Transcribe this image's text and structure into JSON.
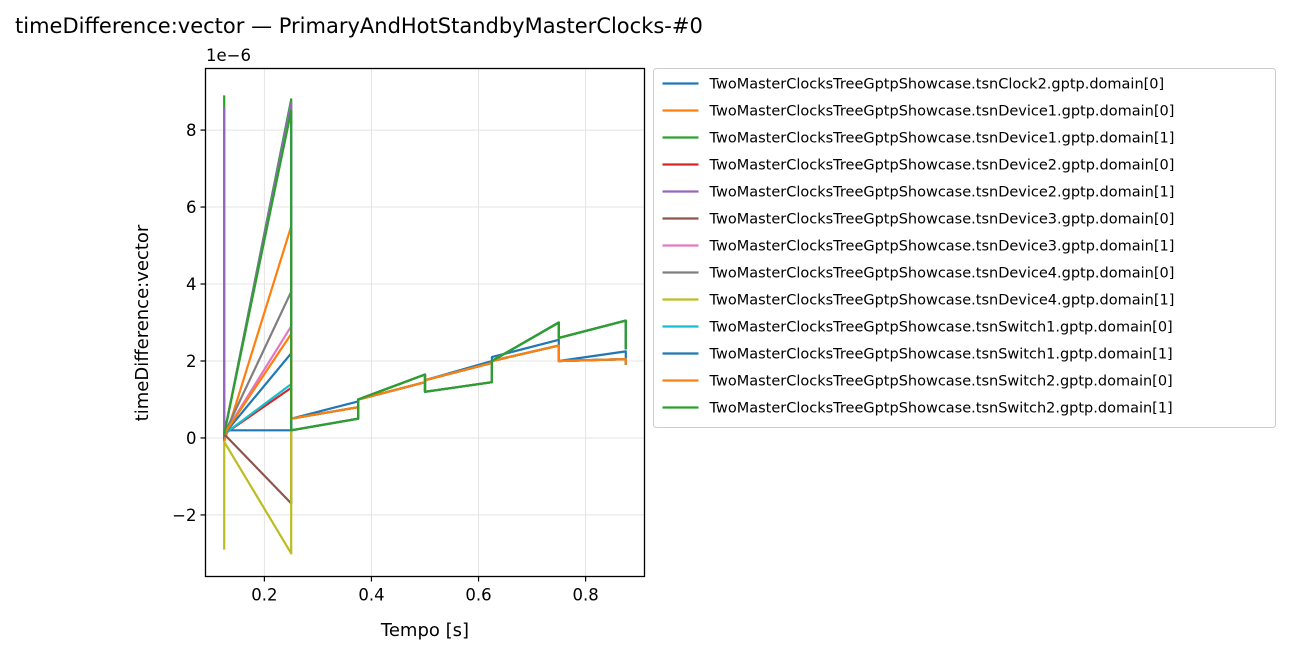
{
  "chart_data": {
    "type": "line",
    "title": "timeDifference:vector — PrimaryAndHotStandbyMasterClocks-#0",
    "xlabel": "Tempo [s]",
    "ylabel": "timeDifference:vector",
    "offset_text": "1e−6",
    "xlim": [
      0.09,
      0.91
    ],
    "ylim": [
      -3.6,
      9.6
    ],
    "xticks": [
      0.2,
      0.4,
      0.6,
      0.8
    ],
    "xtick_labels": [
      "0.2",
      "0.4",
      "0.6",
      "0.8"
    ],
    "yticks": [
      -2,
      0,
      2,
      4,
      6,
      8
    ],
    "ytick_labels": [
      "−2",
      "0",
      "2",
      "4",
      "6",
      "8"
    ],
    "grid": true,
    "legend_position": "outside-right",
    "series": [
      {
        "name": "TwoMasterClocksTreeGptpShowcase.tsnClock2.gptp.domain[0]",
        "color": "#1f77b4",
        "points": [
          [
            0.125,
            -0.1
          ],
          [
            0.125,
            0.2
          ],
          [
            0.25,
            0.2
          ],
          [
            0.25,
            0.5
          ],
          [
            0.375,
            0.95
          ],
          [
            0.375,
            1.0
          ],
          [
            0.5,
            1.45
          ],
          [
            0.5,
            1.5
          ],
          [
            0.625,
            2.0
          ],
          [
            0.625,
            2.1
          ],
          [
            0.75,
            2.55
          ],
          [
            0.75,
            2.0
          ],
          [
            0.875,
            2.25
          ],
          [
            0.875,
            2.0
          ]
        ]
      },
      {
        "name": "TwoMasterClocksTreeGptpShowcase.tsnDevice1.gptp.domain[0]",
        "color": "#ff7f0e",
        "points": [
          [
            0.125,
            -0.1
          ],
          [
            0.25,
            5.5
          ],
          [
            0.25,
            0.5
          ],
          [
            0.375,
            0.8
          ],
          [
            0.375,
            1.0
          ],
          [
            0.5,
            1.45
          ],
          [
            0.5,
            1.5
          ],
          [
            0.625,
            1.95
          ],
          [
            0.625,
            2.0
          ],
          [
            0.75,
            2.4
          ],
          [
            0.75,
            2.0
          ],
          [
            0.875,
            2.05
          ],
          [
            0.875,
            1.9
          ]
        ]
      },
      {
        "name": "TwoMasterClocksTreeGptpShowcase.tsnDevice1.gptp.domain[1]",
        "color": "#2ca02c",
        "points": [
          [
            0.125,
            8.9
          ],
          [
            0.125,
            0.1
          ],
          [
            0.25,
            8.8
          ],
          [
            0.25,
            0.2
          ],
          [
            0.375,
            0.5
          ],
          [
            0.375,
            1.0
          ],
          [
            0.5,
            1.65
          ],
          [
            0.5,
            1.2
          ],
          [
            0.625,
            1.45
          ],
          [
            0.625,
            2.0
          ],
          [
            0.75,
            3.0
          ],
          [
            0.75,
            2.6
          ],
          [
            0.875,
            3.05
          ],
          [
            0.875,
            2.3
          ]
        ]
      },
      {
        "name": "TwoMasterClocksTreeGptpShowcase.tsnDevice2.gptp.domain[0]",
        "color": "#d62728",
        "points": [
          [
            0.125,
            0.1
          ],
          [
            0.25,
            1.3
          ],
          [
            0.25,
            0.5
          ],
          [
            0.375,
            0.8
          ],
          [
            0.375,
            1.0
          ],
          [
            0.5,
            1.45
          ],
          [
            0.5,
            1.5
          ],
          [
            0.625,
            1.95
          ],
          [
            0.625,
            2.0
          ],
          [
            0.75,
            2.4
          ],
          [
            0.75,
            2.0
          ],
          [
            0.875,
            2.05
          ],
          [
            0.875,
            1.9
          ]
        ]
      },
      {
        "name": "TwoMasterClocksTreeGptpShowcase.tsnDevice2.gptp.domain[1]",
        "color": "#9467bd",
        "points": [
          [
            0.125,
            8.6
          ],
          [
            0.125,
            0.1
          ],
          [
            0.25,
            8.7
          ],
          [
            0.25,
            0.2
          ],
          [
            0.375,
            0.5
          ],
          [
            0.375,
            1.0
          ],
          [
            0.5,
            1.65
          ],
          [
            0.5,
            1.2
          ],
          [
            0.625,
            1.45
          ],
          [
            0.625,
            2.0
          ],
          [
            0.75,
            3.0
          ],
          [
            0.75,
            2.6
          ],
          [
            0.875,
            3.05
          ],
          [
            0.875,
            2.3
          ]
        ]
      },
      {
        "name": "TwoMasterClocksTreeGptpShowcase.tsnDevice3.gptp.domain[0]",
        "color": "#8c564b",
        "points": [
          [
            0.125,
            0.1
          ],
          [
            0.25,
            -1.7
          ],
          [
            0.25,
            0.5
          ],
          [
            0.375,
            0.8
          ],
          [
            0.375,
            1.0
          ],
          [
            0.5,
            1.45
          ],
          [
            0.5,
            1.5
          ],
          [
            0.625,
            1.95
          ],
          [
            0.625,
            2.0
          ],
          [
            0.75,
            2.4
          ],
          [
            0.75,
            2.0
          ],
          [
            0.875,
            2.05
          ],
          [
            0.875,
            1.9
          ]
        ]
      },
      {
        "name": "TwoMasterClocksTreeGptpShowcase.tsnDevice3.gptp.domain[1]",
        "color": "#e377c2",
        "points": [
          [
            0.125,
            0.1
          ],
          [
            0.25,
            2.9
          ],
          [
            0.25,
            0.2
          ],
          [
            0.375,
            0.5
          ],
          [
            0.375,
            1.0
          ],
          [
            0.5,
            1.65
          ],
          [
            0.5,
            1.2
          ],
          [
            0.625,
            1.45
          ],
          [
            0.625,
            2.0
          ],
          [
            0.75,
            3.0
          ],
          [
            0.75,
            2.6
          ],
          [
            0.875,
            3.05
          ],
          [
            0.875,
            2.3
          ]
        ]
      },
      {
        "name": "TwoMasterClocksTreeGptpShowcase.tsnDevice4.gptp.domain[0]",
        "color": "#7f7f7f",
        "points": [
          [
            0.125,
            0.1
          ],
          [
            0.25,
            3.8
          ],
          [
            0.25,
            0.5
          ],
          [
            0.375,
            0.8
          ],
          [
            0.375,
            1.0
          ],
          [
            0.5,
            1.45
          ],
          [
            0.5,
            1.5
          ],
          [
            0.625,
            1.95
          ],
          [
            0.625,
            2.0
          ],
          [
            0.75,
            2.4
          ],
          [
            0.75,
            2.0
          ],
          [
            0.875,
            2.05
          ],
          [
            0.875,
            1.9
          ]
        ]
      },
      {
        "name": "TwoMasterClocksTreeGptpShowcase.tsnDevice4.gptp.domain[1]",
        "color": "#bcbd22",
        "points": [
          [
            0.125,
            -2.9
          ],
          [
            0.125,
            -0.1
          ],
          [
            0.25,
            -3.0
          ],
          [
            0.25,
            0.2
          ],
          [
            0.375,
            0.5
          ],
          [
            0.375,
            1.0
          ],
          [
            0.5,
            1.65
          ],
          [
            0.5,
            1.2
          ],
          [
            0.625,
            1.45
          ],
          [
            0.625,
            2.0
          ],
          [
            0.75,
            3.0
          ],
          [
            0.75,
            2.6
          ],
          [
            0.875,
            3.05
          ],
          [
            0.875,
            2.3
          ]
        ]
      },
      {
        "name": "TwoMasterClocksTreeGptpShowcase.tsnSwitch1.gptp.domain[0]",
        "color": "#17becf",
        "points": [
          [
            0.125,
            0.1
          ],
          [
            0.25,
            1.4
          ],
          [
            0.25,
            0.5
          ],
          [
            0.375,
            0.8
          ],
          [
            0.375,
            1.0
          ],
          [
            0.5,
            1.45
          ],
          [
            0.5,
            1.5
          ],
          [
            0.625,
            1.95
          ],
          [
            0.625,
            2.0
          ],
          [
            0.75,
            2.4
          ],
          [
            0.75,
            2.0
          ],
          [
            0.875,
            2.05
          ],
          [
            0.875,
            1.9
          ]
        ]
      },
      {
        "name": "TwoMasterClocksTreeGptpShowcase.tsnSwitch1.gptp.domain[1]",
        "color": "#1f77b4",
        "points": [
          [
            0.125,
            0.1
          ],
          [
            0.25,
            2.2
          ],
          [
            0.25,
            0.2
          ],
          [
            0.375,
            0.5
          ],
          [
            0.375,
            1.0
          ],
          [
            0.5,
            1.65
          ],
          [
            0.5,
            1.2
          ],
          [
            0.625,
            1.45
          ],
          [
            0.625,
            2.0
          ],
          [
            0.75,
            3.0
          ],
          [
            0.75,
            2.6
          ],
          [
            0.875,
            3.05
          ],
          [
            0.875,
            2.3
          ]
        ]
      },
      {
        "name": "TwoMasterClocksTreeGptpShowcase.tsnSwitch2.gptp.domain[0]",
        "color": "#ff7f0e",
        "points": [
          [
            0.125,
            0.1
          ],
          [
            0.25,
            2.7
          ],
          [
            0.25,
            0.5
          ],
          [
            0.375,
            0.8
          ],
          [
            0.375,
            1.0
          ],
          [
            0.5,
            1.45
          ],
          [
            0.5,
            1.5
          ],
          [
            0.625,
            1.95
          ],
          [
            0.625,
            2.0
          ],
          [
            0.75,
            2.4
          ],
          [
            0.75,
            2.0
          ],
          [
            0.875,
            2.05
          ],
          [
            0.875,
            1.9
          ]
        ]
      },
      {
        "name": "TwoMasterClocksTreeGptpShowcase.tsnSwitch2.gptp.domain[1]",
        "color": "#2ca02c",
        "points": [
          [
            0.125,
            0.1
          ],
          [
            0.25,
            8.5
          ],
          [
            0.25,
            0.2
          ],
          [
            0.375,
            0.5
          ],
          [
            0.375,
            1.0
          ],
          [
            0.5,
            1.65
          ],
          [
            0.5,
            1.2
          ],
          [
            0.625,
            1.45
          ],
          [
            0.625,
            2.0
          ],
          [
            0.75,
            3.0
          ],
          [
            0.75,
            2.6
          ],
          [
            0.875,
            3.05
          ],
          [
            0.875,
            2.3
          ]
        ]
      }
    ]
  }
}
